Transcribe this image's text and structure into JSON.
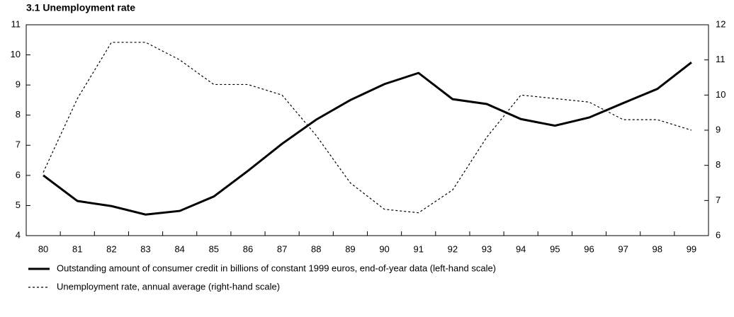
{
  "chart_data": {
    "type": "line",
    "title": "3.1 Unemployment rate",
    "categories": [
      "80",
      "81",
      "82",
      "83",
      "84",
      "85",
      "86",
      "87",
      "88",
      "89",
      "90",
      "91",
      "92",
      "93",
      "94",
      "95",
      "96",
      "97",
      "98",
      "99"
    ],
    "series": [
      {
        "name": "Outstanding amount of consumer credit in billions of constant 1999 euros, end-of-year data (left-hand scale)",
        "color": "#000000",
        "dash": "solid",
        "values": [
          6.0,
          5.15,
          4.98,
          4.7,
          4.82,
          5.3,
          6.15,
          7.05,
          7.85,
          8.5,
          9.03,
          9.4,
          8.53,
          8.37,
          7.87,
          7.65,
          7.92,
          8.4,
          8.87,
          9.75
        ]
      },
      {
        "name": "Unemployment rate, annual average (right-hand scale)",
        "color": "#000000",
        "dash": "dashed",
        "axis": "y2",
        "values": [
          7.8,
          9.9,
          11.5,
          11.5,
          11.0,
          10.3,
          10.3,
          10.0,
          8.85,
          7.5,
          6.75,
          6.65,
          7.3,
          8.8,
          10.0,
          9.9,
          9.8,
          9.3,
          9.3,
          9.0
        ]
      }
    ],
    "ylim": [
      4,
      11
    ],
    "yticks": [
      4,
      5,
      6,
      7,
      8,
      9,
      10,
      11
    ],
    "y2lim": [
      6,
      12
    ],
    "y2ticks": [
      6,
      7,
      8,
      9,
      10,
      11,
      12
    ]
  }
}
